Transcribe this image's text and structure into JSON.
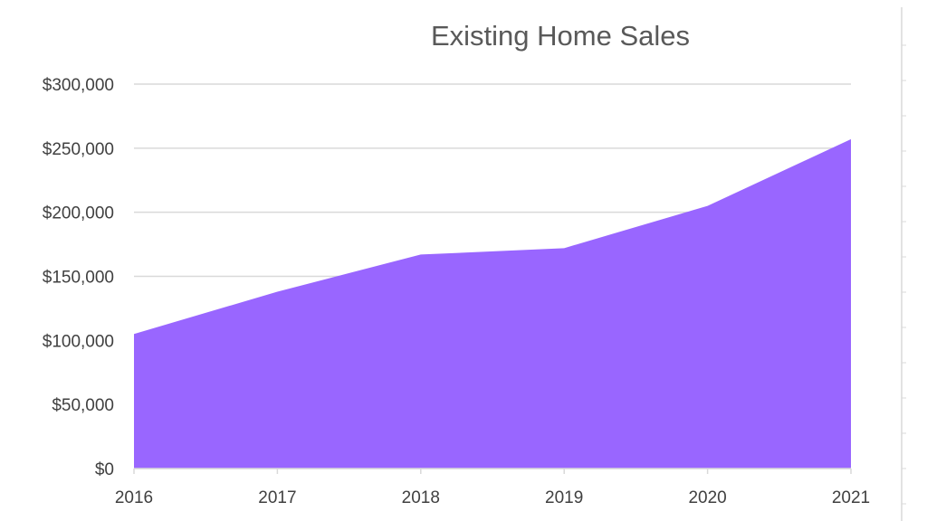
{
  "chart_data": {
    "type": "area",
    "title": "Existing Home Sales",
    "xlabel": "",
    "ylabel": "",
    "categories": [
      "2016",
      "2017",
      "2018",
      "2019",
      "2020",
      "2021"
    ],
    "values": [
      105000,
      138000,
      167000,
      172000,
      205000,
      257000
    ],
    "ylim": [
      0,
      300000
    ],
    "yticks": [
      0,
      50000,
      100000,
      150000,
      200000,
      250000,
      300000
    ],
    "ytick_labels": [
      "$0",
      "$50,000",
      "$100,000",
      "$150,000",
      "$200,000",
      "$250,000",
      "$300,000"
    ],
    "grid": true,
    "legend": "none",
    "colors": {
      "area": "#9966ff",
      "grid": "#d9d9d9",
      "axis": "#d9d9d9"
    }
  }
}
